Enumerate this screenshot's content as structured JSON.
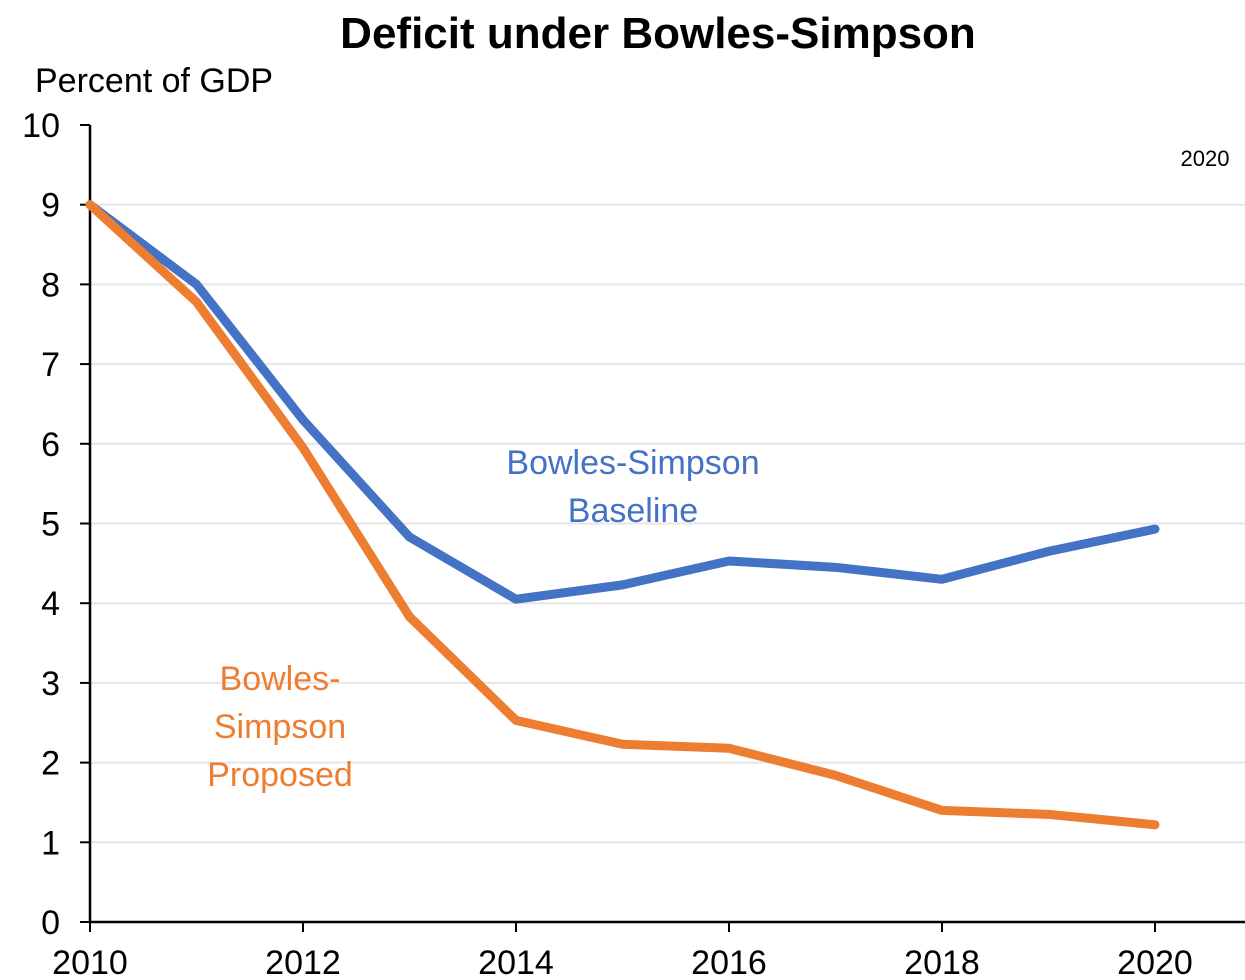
{
  "chart_data": {
    "type": "line",
    "title": "Deficit under Bowles-Simpson",
    "ylabel": "Percent of GDP",
    "xlabel": "",
    "xlim": [
      2010,
      2021
    ],
    "ylim": [
      0,
      10
    ],
    "x_ticks": [
      2010,
      2012,
      2014,
      2016,
      2018,
      2020
    ],
    "y_ticks": [
      0,
      1,
      2,
      3,
      4,
      5,
      6,
      7,
      8,
      9,
      10
    ],
    "grid": "horizontal",
    "legend": "none",
    "annotation": "2020",
    "x": [
      2010,
      2011,
      2012,
      2013,
      2014,
      2015,
      2016,
      2017,
      2018,
      2019,
      2020
    ],
    "series": [
      {
        "name": "Bowles-Simpson Baseline",
        "label_lines": [
          "Bowles-Simpson",
          "Baseline"
        ],
        "color": "#4472C4",
        "values": [
          9.0,
          8.0,
          6.3,
          4.83,
          4.05,
          4.23,
          4.53,
          4.45,
          4.3,
          4.65,
          4.93
        ]
      },
      {
        "name": "Bowles-Simpson Proposed",
        "label_lines": [
          "Bowles-",
          "Simpson",
          "Proposed"
        ],
        "color": "#ED7D31",
        "values": [
          9.0,
          7.78,
          5.95,
          3.83,
          2.53,
          2.23,
          2.18,
          1.84,
          1.4,
          1.35,
          1.22
        ]
      }
    ]
  }
}
